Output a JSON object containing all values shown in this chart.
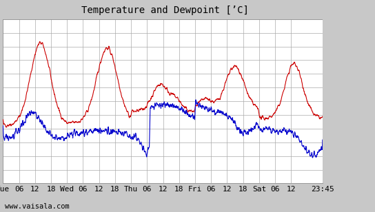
{
  "title": "Temperature and Dewpoint [’C]",
  "ylim": [
    -10,
    14
  ],
  "yticks": [
    -10,
    -8,
    -6,
    -4,
    -2,
    0,
    2,
    4,
    6,
    8,
    10,
    12,
    14
  ],
  "xtick_labels": [
    "Tue",
    "06",
    "12",
    "18",
    "Wed",
    "06",
    "12",
    "18",
    "Thu",
    "06",
    "12",
    "18",
    "Fri",
    "06",
    "12",
    "18",
    "Sat",
    "06",
    "12",
    "23:45"
  ],
  "xtick_pos": [
    0,
    6,
    12,
    18,
    24,
    30,
    36,
    42,
    48,
    54,
    60,
    66,
    72,
    78,
    84,
    90,
    96,
    102,
    108,
    119.75
  ],
  "watermark": "www.vaisala.com",
  "bg_color": "#c8c8c8",
  "plot_bg": "#ffffff",
  "grid_color": "#aaaaaa",
  "temp_color": "#cc0000",
  "dewp_color": "#0000cc",
  "line_width": 0.8,
  "title_fontsize": 10,
  "tick_fontsize": 8,
  "watermark_fontsize": 7.5,
  "right_panel_color": "#c8c8c8",
  "xlim_max": 119.75
}
